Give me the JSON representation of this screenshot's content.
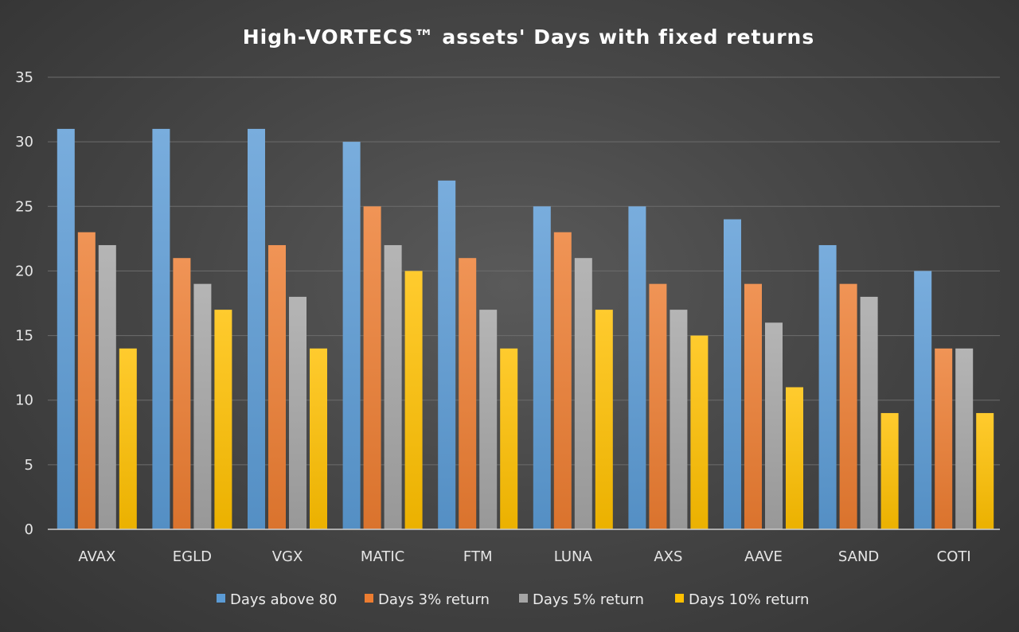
{
  "chart_data": {
    "type": "bar",
    "title": "High-VORTECS™ assets' Days with fixed returns",
    "xlabel": "",
    "ylabel": "",
    "categories": [
      "AVAX",
      "EGLD",
      "VGX",
      "MATIC",
      "FTM",
      "LUNA",
      "AXS",
      "AAVE",
      "SAND",
      "COTI"
    ],
    "ylim": [
      0,
      35
    ],
    "yticks": [
      "0",
      "5",
      "10",
      "15",
      "20",
      "25",
      "30",
      "35"
    ],
    "grid": true,
    "legend_position": "bottom",
    "series": [
      {
        "name": "Days above 80",
        "color": "#5b9bd5",
        "values": [
          31,
          31,
          31,
          30,
          27,
          25,
          25,
          24,
          22,
          20
        ]
      },
      {
        "name": "Days 3% return",
        "color": "#ed7d31",
        "values": [
          23,
          21,
          22,
          25,
          21,
          23,
          19,
          19,
          19,
          14
        ]
      },
      {
        "name": "Days 5% return",
        "color": "#a5a5a5",
        "values": [
          22,
          19,
          18,
          22,
          17,
          21,
          17,
          16,
          18,
          14
        ]
      },
      {
        "name": "Days 10% return",
        "color": "#ffc000",
        "values": [
          14,
          17,
          14,
          20,
          14,
          17,
          15,
          11,
          9,
          9
        ]
      }
    ]
  }
}
